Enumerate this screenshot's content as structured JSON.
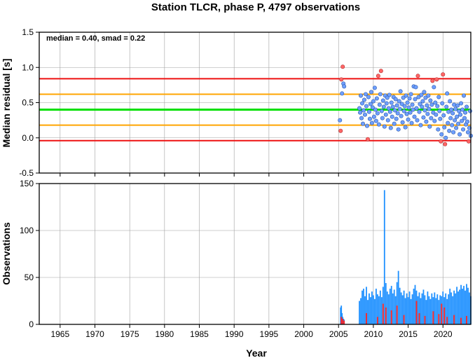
{
  "chart_data": [
    {
      "type": "scatter",
      "title": "Station TLCR, phase P, 4797 observations",
      "ylabel": "Median residual [s]",
      "xlim": [
        1962,
        2024
      ],
      "ylim": [
        -0.5,
        1.5
      ],
      "yticks": [
        -0.5,
        0.0,
        0.5,
        1.0,
        1.5
      ],
      "ytick_labels": [
        "-0.5",
        "0.0",
        "0.5",
        "1.0",
        "1.5"
      ],
      "grid": true,
      "annotation": "median = 0.40, smad = 0.22",
      "reference_lines": [
        {
          "value": 0.4,
          "color": "#00e000",
          "role": "median"
        },
        {
          "value": 0.62,
          "color": "#ffa500",
          "role": "median + smad"
        },
        {
          "value": 0.18,
          "color": "#ffa500",
          "role": "median - smad"
        },
        {
          "value": 0.84,
          "color": "#ee1111",
          "role": "median + 2 smad"
        },
        {
          "value": -0.04,
          "color": "#ee1111",
          "role": "median - 2 smad"
        }
      ],
      "inlier_color": "#6f9fff",
      "outlier_color": "#ff6666",
      "outliers": [
        [
          2005.3,
          0.1
        ],
        [
          2005.4,
          0.83
        ],
        [
          2005.6,
          1.01
        ],
        [
          2009.2,
          -0.02
        ],
        [
          2011.1,
          0.95
        ],
        [
          2010.7,
          0.88
        ],
        [
          2016.4,
          0.88
        ],
        [
          2019.1,
          0.83
        ],
        [
          2019.7,
          -0.05
        ],
        [
          2020.0,
          0.9
        ],
        [
          2020.3,
          -0.09
        ],
        [
          2023.7,
          -0.05
        ],
        [
          2018.5,
          0.81
        ]
      ],
      "inliers": [
        [
          2005.2,
          0.25
        ],
        [
          2005.5,
          0.63
        ],
        [
          2005.7,
          0.77
        ],
        [
          2005.8,
          0.73
        ],
        [
          2008.0,
          0.42
        ],
        [
          2008.1,
          0.36
        ],
        [
          2008.2,
          0.6
        ],
        [
          2008.3,
          0.28
        ],
        [
          2008.4,
          0.49
        ],
        [
          2008.5,
          0.2
        ],
        [
          2008.6,
          0.39
        ],
        [
          2008.7,
          0.54
        ],
        [
          2008.8,
          0.33
        ],
        [
          2008.9,
          0.62
        ],
        [
          2009.0,
          0.45
        ],
        [
          2009.1,
          0.17
        ],
        [
          2009.3,
          0.58
        ],
        [
          2009.4,
          0.37
        ],
        [
          2009.5,
          0.27
        ],
        [
          2009.6,
          0.48
        ],
        [
          2009.7,
          0.65
        ],
        [
          2009.8,
          0.21
        ],
        [
          2009.9,
          0.43
        ],
        [
          2010.0,
          0.52
        ],
        [
          2010.1,
          0.3
        ],
        [
          2010.2,
          0.71
        ],
        [
          2010.3,
          0.4
        ],
        [
          2010.4,
          0.24
        ],
        [
          2010.5,
          0.56
        ],
        [
          2010.6,
          0.35
        ],
        [
          2010.8,
          0.19
        ],
        [
          2010.9,
          0.47
        ],
        [
          2011.0,
          0.62
        ],
        [
          2011.2,
          0.38
        ],
        [
          2011.3,
          0.28
        ],
        [
          2011.4,
          0.53
        ],
        [
          2011.5,
          0.44
        ],
        [
          2011.6,
          0.16
        ],
        [
          2011.7,
          0.6
        ],
        [
          2011.8,
          0.33
        ],
        [
          2011.9,
          0.49
        ],
        [
          2012.0,
          0.57
        ],
        [
          2012.1,
          0.25
        ],
        [
          2012.2,
          0.42
        ],
        [
          2012.3,
          0.61
        ],
        [
          2012.4,
          0.37
        ],
        [
          2012.5,
          0.14
        ],
        [
          2012.6,
          0.5
        ],
        [
          2012.7,
          0.3
        ],
        [
          2012.8,
          0.44
        ],
        [
          2012.9,
          0.58
        ],
        [
          2013.0,
          0.2
        ],
        [
          2013.1,
          0.39
        ],
        [
          2013.2,
          0.55
        ],
        [
          2013.3,
          0.27
        ],
        [
          2013.4,
          0.46
        ],
        [
          2013.5,
          0.35
        ],
        [
          2013.6,
          0.12
        ],
        [
          2013.7,
          0.52
        ],
        [
          2013.8,
          0.41
        ],
        [
          2013.9,
          0.66
        ],
        [
          2014.0,
          0.31
        ],
        [
          2014.1,
          0.48
        ],
        [
          2014.2,
          0.22
        ],
        [
          2014.3,
          0.57
        ],
        [
          2014.4,
          0.38
        ],
        [
          2014.5,
          0.45
        ],
        [
          2014.6,
          0.15
        ],
        [
          2014.7,
          0.6
        ],
        [
          2014.8,
          0.34
        ],
        [
          2014.9,
          0.5
        ],
        [
          2015.0,
          0.26
        ],
        [
          2015.1,
          0.43
        ],
        [
          2015.2,
          0.56
        ],
        [
          2015.3,
          0.36
        ],
        [
          2015.4,
          0.62
        ],
        [
          2015.5,
          0.21
        ],
        [
          2015.6,
          0.47
        ],
        [
          2015.7,
          0.4
        ],
        [
          2015.8,
          0.73
        ],
        [
          2015.9,
          0.3
        ],
        [
          2016.0,
          0.55
        ],
        [
          2016.1,
          0.72
        ],
        [
          2016.2,
          0.42
        ],
        [
          2016.3,
          0.25
        ],
        [
          2016.5,
          0.58
        ],
        [
          2016.6,
          0.37
        ],
        [
          2016.7,
          0.48
        ],
        [
          2016.8,
          0.18
        ],
        [
          2016.9,
          0.61
        ],
        [
          2017.0,
          0.44
        ],
        [
          2017.1,
          0.52
        ],
        [
          2017.2,
          0.29
        ],
        [
          2017.3,
          0.65
        ],
        [
          2017.4,
          0.39
        ],
        [
          2017.5,
          0.57
        ],
        [
          2017.6,
          0.23
        ],
        [
          2017.7,
          0.46
        ],
        [
          2017.8,
          0.34
        ],
        [
          2017.9,
          0.6
        ],
        [
          2018.0,
          0.41
        ],
        [
          2018.1,
          0.16
        ],
        [
          2018.2,
          0.53
        ],
        [
          2018.3,
          0.28
        ],
        [
          2018.4,
          0.47
        ],
        [
          2018.6,
          0.36
        ],
        [
          2018.7,
          0.72
        ],
        [
          2018.8,
          0.24
        ],
        [
          2018.9,
          0.5
        ],
        [
          2019.0,
          0.33
        ],
        [
          2019.2,
          0.45
        ],
        [
          2019.3,
          0.12
        ],
        [
          2019.4,
          0.58
        ],
        [
          2019.5,
          0.38
        ],
        [
          2019.6,
          0.27
        ],
        [
          2019.8,
          0.05
        ],
        [
          2019.9,
          0.49
        ],
        [
          2020.1,
          0.32
        ],
        [
          2020.2,
          0.15
        ],
        [
          2020.4,
          0.0
        ],
        [
          2020.5,
          0.44
        ],
        [
          2020.6,
          0.63
        ],
        [
          2020.7,
          0.21
        ],
        [
          2020.8,
          0.37
        ],
        [
          2020.9,
          0.1
        ],
        [
          2021.0,
          0.52
        ],
        [
          2021.1,
          0.28
        ],
        [
          2021.2,
          0.4
        ],
        [
          2021.3,
          0.18
        ],
        [
          2021.4,
          0.35
        ],
        [
          2021.5,
          0.08
        ],
        [
          2021.6,
          0.47
        ],
        [
          2021.7,
          0.25
        ],
        [
          2021.8,
          0.41
        ],
        [
          2021.9,
          0.14
        ],
        [
          2022.0,
          0.3
        ],
        [
          2022.1,
          0.46
        ],
        [
          2022.2,
          0.2
        ],
        [
          2022.3,
          0.38
        ],
        [
          2022.4,
          0.05
        ],
        [
          2022.5,
          0.33
        ],
        [
          2022.6,
          0.49
        ],
        [
          2022.7,
          0.24
        ],
        [
          2022.8,
          0.4
        ],
        [
          2022.9,
          0.12
        ],
        [
          2023.0,
          0.6
        ],
        [
          2023.1,
          0.28
        ],
        [
          2023.2,
          0.36
        ],
        [
          2023.3,
          0.19
        ],
        [
          2023.4,
          0.44
        ],
        [
          2023.5,
          0.23
        ],
        [
          2023.6,
          0.08
        ],
        [
          2023.8,
          0.14
        ],
        [
          2023.9,
          0.38
        ],
        [
          2024.0,
          0.03
        ]
      ]
    },
    {
      "type": "bar",
      "xlabel": "Year",
      "ylabel": "Observations",
      "xlim": [
        1962,
        2024
      ],
      "ylim": [
        0,
        150
      ],
      "xticks": [
        1965,
        1970,
        1975,
        1980,
        1985,
        1990,
        1995,
        2000,
        2005,
        2010,
        2015,
        2020
      ],
      "xtick_labels": [
        "1965",
        "1970",
        "1975",
        "1980",
        "1985",
        "1990",
        "1995",
        "2000",
        "2005",
        "2010",
        "2015",
        "2020"
      ],
      "yticks": [
        0,
        50,
        100,
        150
      ],
      "ytick_labels": [
        "0",
        "50",
        "100",
        "150"
      ],
      "grid": true,
      "total_color": "#1e90ff",
      "outlier_color": "#ff2020",
      "total_counts": [
        [
          2005.3,
          18
        ],
        [
          2005.4,
          20
        ],
        [
          2005.5,
          12
        ],
        [
          2005.6,
          8
        ],
        [
          2005.7,
          6
        ],
        [
          2005.8,
          5
        ],
        [
          2008.0,
          25
        ],
        [
          2008.2,
          28
        ],
        [
          2008.4,
          36
        ],
        [
          2008.6,
          38
        ],
        [
          2008.8,
          30
        ],
        [
          2009.0,
          40
        ],
        [
          2009.2,
          26
        ],
        [
          2009.4,
          33
        ],
        [
          2009.6,
          29
        ],
        [
          2009.8,
          35
        ],
        [
          2010.0,
          31
        ],
        [
          2010.2,
          27
        ],
        [
          2010.4,
          38
        ],
        [
          2010.6,
          32
        ],
        [
          2010.8,
          30
        ],
        [
          2011.0,
          36
        ],
        [
          2011.2,
          29
        ],
        [
          2011.4,
          40
        ],
        [
          2011.6,
          143
        ],
        [
          2011.8,
          44
        ],
        [
          2012.0,
          35
        ],
        [
          2012.2,
          32
        ],
        [
          2012.4,
          38
        ],
        [
          2012.6,
          41
        ],
        [
          2012.8,
          33
        ],
        [
          2013.0,
          37
        ],
        [
          2013.2,
          30
        ],
        [
          2013.4,
          45
        ],
        [
          2013.6,
          57
        ],
        [
          2013.8,
          39
        ],
        [
          2014.0,
          34
        ],
        [
          2014.2,
          31
        ],
        [
          2014.4,
          36
        ],
        [
          2014.6,
          28
        ],
        [
          2014.8,
          33
        ],
        [
          2015.0,
          29
        ],
        [
          2015.2,
          35
        ],
        [
          2015.4,
          27
        ],
        [
          2015.6,
          32
        ],
        [
          2015.8,
          38
        ],
        [
          2016.0,
          42
        ],
        [
          2016.2,
          36
        ],
        [
          2016.4,
          30
        ],
        [
          2016.6,
          34
        ],
        [
          2016.8,
          28
        ],
        [
          2017.0,
          33
        ],
        [
          2017.2,
          37
        ],
        [
          2017.4,
          31
        ],
        [
          2017.6,
          26
        ],
        [
          2017.8,
          35
        ],
        [
          2018.0,
          30
        ],
        [
          2018.2,
          27
        ],
        [
          2018.4,
          33
        ],
        [
          2018.6,
          29
        ],
        [
          2018.8,
          34
        ],
        [
          2019.0,
          28
        ],
        [
          2019.2,
          32
        ],
        [
          2019.4,
          26
        ],
        [
          2019.6,
          31
        ],
        [
          2019.8,
          30
        ],
        [
          2020.0,
          35
        ],
        [
          2020.2,
          29
        ],
        [
          2020.4,
          33
        ],
        [
          2020.6,
          27
        ],
        [
          2020.8,
          32
        ],
        [
          2021.0,
          38
        ],
        [
          2021.2,
          34
        ],
        [
          2021.4,
          30
        ],
        [
          2021.6,
          36
        ],
        [
          2021.8,
          33
        ],
        [
          2022.0,
          40
        ],
        [
          2022.2,
          35
        ],
        [
          2022.4,
          37
        ],
        [
          2022.6,
          42
        ],
        [
          2022.8,
          38
        ],
        [
          2023.0,
          41
        ],
        [
          2023.2,
          36
        ],
        [
          2023.4,
          43
        ],
        [
          2023.6,
          39
        ],
        [
          2023.8,
          34
        ],
        [
          2024.0,
          30
        ]
      ],
      "outlier_counts": [
        [
          2005.4,
          8
        ],
        [
          2005.6,
          6
        ],
        [
          2005.8,
          4
        ],
        [
          2009.0,
          12
        ],
        [
          2010.6,
          8
        ],
        [
          2011.4,
          22
        ],
        [
          2011.8,
          18
        ],
        [
          2012.6,
          15
        ],
        [
          2013.4,
          20
        ],
        [
          2014.4,
          10
        ],
        [
          2016.2,
          25
        ],
        [
          2016.6,
          12
        ],
        [
          2017.4,
          9
        ],
        [
          2018.6,
          14
        ],
        [
          2019.4,
          11
        ],
        [
          2019.8,
          22
        ],
        [
          2020.2,
          18
        ],
        [
          2020.6,
          8
        ],
        [
          2021.6,
          10
        ],
        [
          2022.6,
          7
        ],
        [
          2023.4,
          9
        ]
      ]
    }
  ]
}
